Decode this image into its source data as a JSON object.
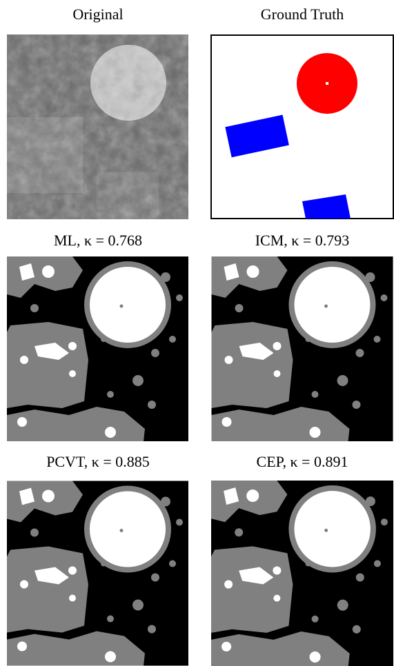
{
  "panels": [
    {
      "caption": "Original"
    },
    {
      "caption": "Ground Truth"
    },
    {
      "caption": "ML, κ = 0.768"
    },
    {
      "caption": "ICM, κ = 0.793"
    },
    {
      "caption": "PCVT, κ = 0.885"
    },
    {
      "caption": "CEP, κ = 0.891"
    }
  ]
}
